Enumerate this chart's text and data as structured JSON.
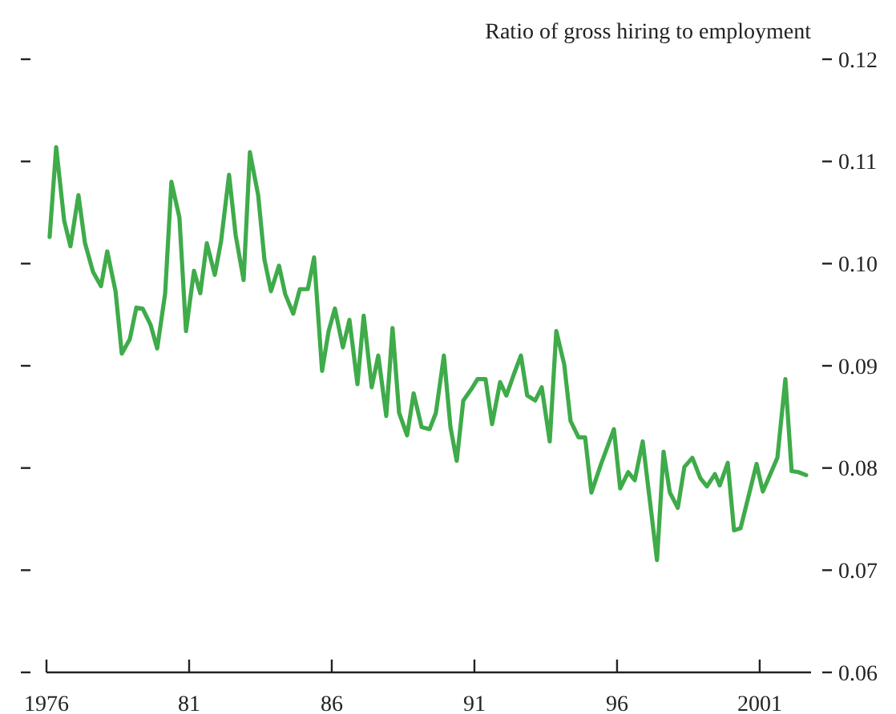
{
  "chart_data": {
    "type": "line",
    "y2label": "Ratio of gross hiring to employment",
    "series": [
      {
        "color": "#3fab4a",
        "axis": "y2",
        "x": [
          1976.11,
          1976.34,
          1976.62,
          1976.84,
          1977.12,
          1977.35,
          1977.63,
          1977.91,
          1978.13,
          1978.42,
          1978.64,
          1978.92,
          1979.15,
          1979.37,
          1979.65,
          1979.88,
          1980.16,
          1980.38,
          1980.66,
          1980.89,
          1981.17,
          1981.39,
          1981.62,
          1981.9,
          1982.12,
          1982.4,
          1982.63,
          1982.91,
          1983.13,
          1983.42,
          1983.64,
          1983.87,
          1984.15,
          1984.37,
          1984.65,
          1984.88,
          1985.16,
          1985.38,
          1985.66,
          1985.89,
          1986.11,
          1986.39,
          1986.62,
          1986.9,
          1987.12,
          1987.4,
          1987.63,
          1987.91,
          1988.13,
          1988.36,
          1988.64,
          1988.87,
          1989.15,
          1989.43,
          1989.65,
          1989.93,
          1990.16,
          1990.38,
          1990.61,
          1990.89,
          1991.11,
          1991.39,
          1991.62,
          1991.9,
          1992.12,
          1992.4,
          1992.63,
          1992.85,
          1993.13,
          1993.36,
          1993.64,
          1993.87,
          1994.15,
          1994.37,
          1994.65,
          1994.88,
          1995.1,
          1995.44,
          1995.89,
          1996.11,
          1996.39,
          1996.62,
          1996.9,
          1997.4,
          1997.63,
          1997.85,
          1998.13,
          1998.36,
          1998.64,
          1998.92,
          1999.15,
          1999.43,
          1999.6,
          1999.88,
          2000.1,
          2000.33,
          2000.89,
          2001.11,
          2001.62,
          2001.9,
          2002.12,
          2002.35,
          2002.63
        ],
        "values": [
          0.1026,
          0.1114,
          0.1042,
          0.1017,
          0.1067,
          0.102,
          0.0992,
          0.0978,
          0.1012,
          0.0973,
          0.0912,
          0.0926,
          0.0957,
          0.0956,
          0.094,
          0.0917,
          0.0971,
          0.108,
          0.1045,
          0.0934,
          0.0993,
          0.0971,
          0.102,
          0.0989,
          0.1022,
          0.1087,
          0.1028,
          0.0984,
          0.1109,
          0.1067,
          0.1004,
          0.0973,
          0.0998,
          0.097,
          0.0951,
          0.0975,
          0.0975,
          0.1006,
          0.0895,
          0.0934,
          0.0956,
          0.0918,
          0.0945,
          0.0882,
          0.0949,
          0.0879,
          0.091,
          0.0851,
          0.0937,
          0.0854,
          0.0832,
          0.0873,
          0.084,
          0.0838,
          0.0854,
          0.091,
          0.084,
          0.0807,
          0.0866,
          0.0877,
          0.0887,
          0.0887,
          0.0843,
          0.0884,
          0.0871,
          0.0893,
          0.091,
          0.0871,
          0.0866,
          0.0879,
          0.0826,
          0.0934,
          0.0901,
          0.0846,
          0.083,
          0.083,
          0.0776,
          0.0804,
          0.0838,
          0.078,
          0.0796,
          0.0788,
          0.0826,
          0.071,
          0.0816,
          0.0776,
          0.0761,
          0.0801,
          0.081,
          0.079,
          0.0782,
          0.0794,
          0.0783,
          0.0805,
          0.0739,
          0.0741,
          0.0804,
          0.0777,
          0.081,
          0.0887,
          0.0797,
          0.0796,
          0.0793
        ]
      }
    ],
    "xlim": [
      1976,
      2002.8
    ],
    "xticks": [
      {
        "value": 1976,
        "label": "1976"
      },
      {
        "value": 1981,
        "label": "81"
      },
      {
        "value": 1986,
        "label": "86"
      },
      {
        "value": 1991,
        "label": "91"
      },
      {
        "value": 1996,
        "label": "96"
      },
      {
        "value": 2001,
        "label": "2001"
      }
    ],
    "y2lim": [
      0.06,
      0.12
    ],
    "y2ticks": [
      {
        "value": 0.06,
        "label": "0.06"
      },
      {
        "value": 0.07,
        "label": "0.07"
      },
      {
        "value": 0.08,
        "label": "0.08"
      },
      {
        "value": 0.09,
        "label": "0.09"
      },
      {
        "value": 0.1,
        "label": "0.10"
      },
      {
        "value": 0.11,
        "label": "0.11"
      },
      {
        "value": 0.12,
        "label": "0.12"
      }
    ],
    "line_style": "solid",
    "marker": "none"
  }
}
